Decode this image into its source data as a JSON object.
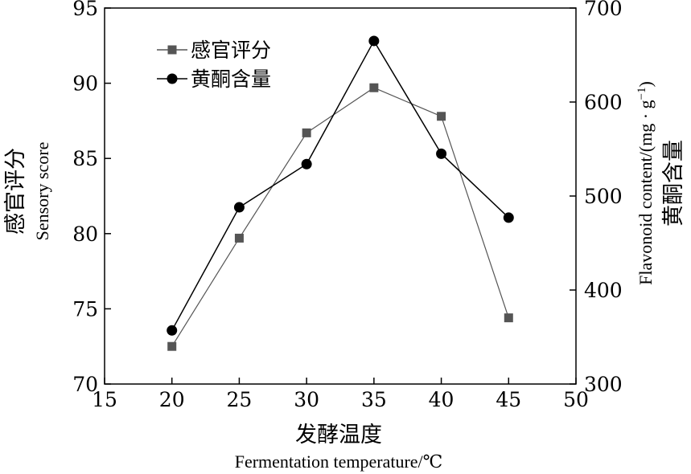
{
  "chart_data": {
    "type": "line",
    "x": [
      20,
      25,
      30,
      35,
      40,
      45
    ],
    "xlim": [
      15,
      50
    ],
    "x_ticks": [
      "15",
      "20",
      "25",
      "30",
      "35",
      "40",
      "45",
      "50"
    ],
    "xlabel_cn": "发酵温度",
    "xlabel_en": "Fermentation temperature/℃",
    "ylim_left": [
      70,
      95
    ],
    "y_ticks_left": [
      "70",
      "75",
      "80",
      "85",
      "90",
      "95"
    ],
    "ylabel_left_cn": "感官评分",
    "ylabel_left_en": "Sensory score",
    "ylim_right": [
      300,
      700
    ],
    "y_ticks_right": [
      "300",
      "400",
      "500",
      "600",
      "700"
    ],
    "ylabel_right_cn": "黄酮含量",
    "ylabel_right_en": "Flavonoid content/(mg · g",
    "ylabel_right_en_sup": "−1",
    "ylabel_right_en_close": ")",
    "series": [
      {
        "name": "感官评分",
        "axis": "left",
        "marker": "square",
        "color": "#555555",
        "values": [
          72.5,
          79.7,
          86.7,
          89.7,
          87.8,
          74.4
        ]
      },
      {
        "name": "黄酮含量",
        "axis": "right",
        "marker": "circle",
        "color": "#000000",
        "values": [
          357,
          488,
          534,
          665,
          545,
          477
        ]
      }
    ],
    "legend_position": "top-left",
    "grid": false
  }
}
